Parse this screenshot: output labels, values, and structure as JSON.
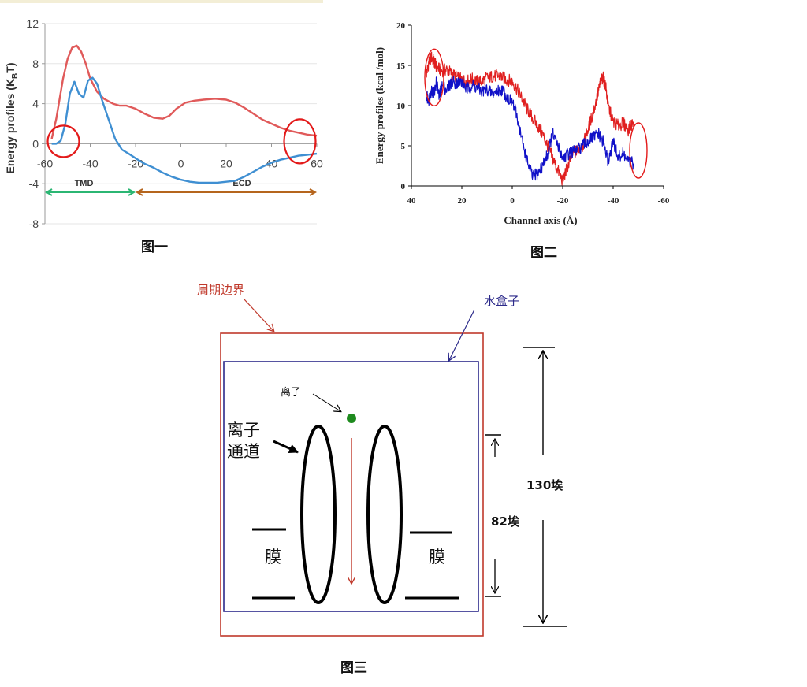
{
  "captions": {
    "fig1": "图一",
    "fig2": "图二",
    "fig3": "图三"
  },
  "chart_data": [
    {
      "type": "line",
      "ylabel": "Energy profiles (K",
      "ylabel_sub": "B",
      "ylabel_end": "T)",
      "xlim": [
        -60,
        60
      ],
      "ylim": [
        -8,
        12
      ],
      "x_ticks": [
        "-60",
        "-40",
        "-20",
        "0",
        "20",
        "40",
        "60"
      ],
      "y_ticks": [
        "12",
        "8",
        "4",
        "0",
        "-4",
        "-8"
      ],
      "regions": [
        {
          "label": "TMD",
          "from": -60,
          "to": -20,
          "color": "#2bb673"
        },
        {
          "label": "ECD",
          "from": -20,
          "to": 60,
          "color": "#b5651d"
        }
      ],
      "series": [
        {
          "color": "#e05a5a",
          "x": [
            -57,
            -55,
            -52,
            -50,
            -48,
            -46,
            -44,
            -42,
            -40,
            -37,
            -34,
            -30,
            -27,
            -24,
            -20,
            -16,
            -12,
            -8,
            -5,
            -2,
            2,
            6,
            10,
            15,
            20,
            24,
            28,
            32,
            36,
            40,
            44,
            48,
            52,
            56,
            60
          ],
          "y": [
            0.5,
            2.5,
            6.5,
            8.5,
            9.6,
            9.8,
            9.2,
            8.0,
            6.5,
            5.2,
            4.5,
            4.0,
            3.8,
            3.8,
            3.5,
            3.0,
            2.6,
            2.5,
            2.8,
            3.5,
            4.1,
            4.3,
            4.4,
            4.5,
            4.4,
            4.1,
            3.6,
            3.0,
            2.4,
            2.0,
            1.6,
            1.3,
            1.1,
            0.9,
            0.8
          ]
        },
        {
          "color": "#3f8fd2",
          "x": [
            -57,
            -55,
            -53,
            -51,
            -49,
            -47,
            -45,
            -43,
            -41,
            -39,
            -37,
            -35,
            -32,
            -29,
            -26,
            -23,
            -21,
            -19,
            -16,
            -12,
            -8,
            -4,
            0,
            4,
            8,
            12,
            16,
            20,
            24,
            28,
            32,
            36,
            40,
            44,
            48,
            52,
            56,
            60
          ],
          "y": [
            0.0,
            0.0,
            0.3,
            2.0,
            5.0,
            6.2,
            5.0,
            4.6,
            6.3,
            6.6,
            6.0,
            4.5,
            2.5,
            0.5,
            -0.6,
            -1.0,
            -1.3,
            -1.6,
            -2.0,
            -2.4,
            -2.9,
            -3.3,
            -3.6,
            -3.8,
            -3.9,
            -3.9,
            -3.9,
            -3.8,
            -3.7,
            -3.3,
            -2.8,
            -2.3,
            -1.9,
            -1.6,
            -1.4,
            -1.2,
            -1.1,
            -1.0
          ]
        }
      ],
      "annotations": [
        {
          "shape": "circle",
          "x": -56,
          "y": 0,
          "color": "#e31a1a"
        },
        {
          "shape": "circle",
          "x": 56,
          "y": 0,
          "color": "#e31a1a"
        }
      ]
    },
    {
      "type": "line",
      "xlabel": "Channel axis (Å)",
      "ylabel": "Energy profiles (kcal /mol)",
      "xlim": [
        40,
        -60
      ],
      "ylim": [
        0,
        20
      ],
      "x_ticks": [
        "40",
        "20",
        "0",
        "-20",
        "-40",
        "-60"
      ],
      "y_ticks": [
        "20",
        "15",
        "10",
        "5",
        "0"
      ],
      "series": [
        {
          "color": "#e02020",
          "x": [
            34,
            33,
            32,
            31,
            30,
            28,
            26,
            24,
            22,
            20,
            18,
            16,
            14,
            12,
            10,
            8,
            6,
            4,
            2,
            0,
            -2,
            -4,
            -6,
            -8,
            -10,
            -12,
            -14,
            -16,
            -18,
            -20,
            -22,
            -24,
            -26,
            -28,
            -30,
            -32,
            -34,
            -35,
            -36,
            -37,
            -38,
            -40,
            -42,
            -44,
            -46,
            -48
          ],
          "y": [
            14.0,
            15.5,
            16.0,
            15.5,
            14.8,
            14.3,
            14.5,
            14.0,
            13.5,
            13.2,
            13.0,
            13.3,
            13.0,
            13.0,
            13.5,
            13.6,
            13.7,
            13.5,
            13.2,
            13.0,
            12.0,
            10.8,
            9.5,
            8.5,
            7.5,
            6.5,
            5.0,
            3.5,
            2.0,
            0.6,
            2.5,
            4.0,
            4.5,
            5.0,
            7.0,
            9.0,
            11.5,
            13.0,
            13.6,
            12.5,
            10.0,
            8.0,
            7.5,
            7.8,
            7.0,
            8.0
          ]
        },
        {
          "color": "#1010c8",
          "x": [
            34,
            33,
            32,
            31,
            30,
            29,
            28,
            26,
            24,
            22,
            20,
            18,
            16,
            14,
            12,
            10,
            8,
            6,
            4,
            2,
            0,
            -2,
            -4,
            -6,
            -8,
            -10,
            -12,
            -14,
            -16,
            -18,
            -20,
            -22,
            -24,
            -26,
            -28,
            -30,
            -32,
            -34,
            -36,
            -38,
            -40,
            -42,
            -44,
            -46,
            -48
          ],
          "y": [
            11.0,
            10.8,
            12.0,
            11.5,
            13.0,
            11.0,
            12.5,
            12.0,
            13.0,
            12.8,
            13.0,
            12.0,
            12.5,
            12.2,
            11.8,
            12.0,
            11.5,
            11.8,
            12.0,
            11.0,
            10.5,
            8.5,
            5.5,
            3.0,
            1.2,
            1.5,
            2.5,
            4.0,
            6.5,
            5.0,
            3.5,
            4.0,
            4.2,
            4.5,
            5.0,
            5.5,
            6.0,
            6.5,
            5.5,
            3.0,
            5.5,
            3.5,
            4.0,
            3.0,
            2.8
          ]
        }
      ],
      "annotations": [
        {
          "shape": "ellipse",
          "x": 35,
          "y": 13.5,
          "color": "#e31a1a"
        },
        {
          "shape": "ellipse",
          "x": -50,
          "y": 5,
          "color": "#e31a1a"
        }
      ]
    }
  ],
  "diagram": {
    "periodic_boundary": "周期边界",
    "water_box": "水盒子",
    "ion": "离子",
    "ion_channel_line1": "离子",
    "ion_channel_line2": "通道",
    "membrane_left": "膜",
    "membrane_right": "膜",
    "dim_outer": "130埃",
    "dim_inner": "82埃",
    "colors": {
      "boundary": "#c0392b",
      "water": "#2c2a8a",
      "ion": "#1e8a1e",
      "arrow": "#c0392b"
    }
  }
}
